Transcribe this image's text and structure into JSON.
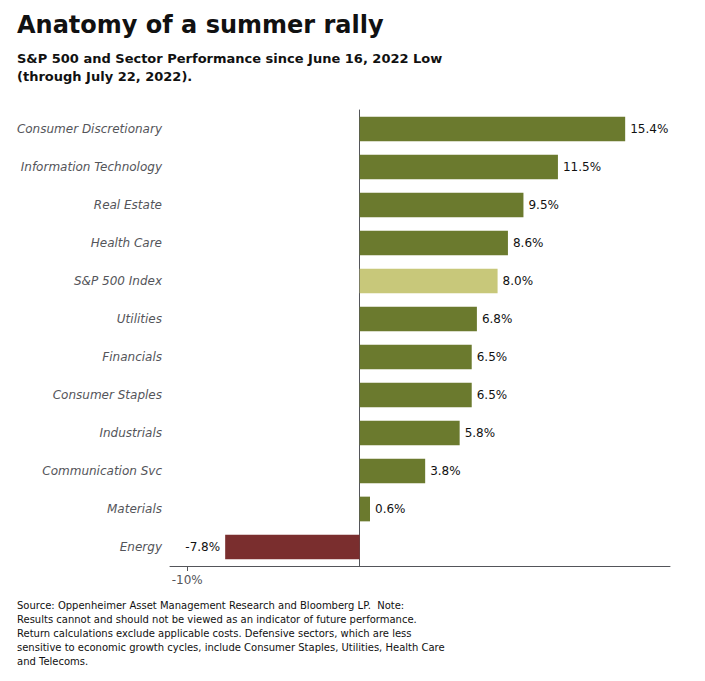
{
  "chart_data": {
    "type": "bar",
    "orientation": "horizontal",
    "title": "Anatomy of a summer rally",
    "subtitle": "S&P 500 and Sector Performance since June 16, 2022 Low\n(through July 22, 2022).",
    "annotations": [
      "Source: Oppenheimer Asset Management Research and Bloomberg LP.  Note:\nResults cannot and should not be viewed as an indicator of future performance.\nReturn calculations exclude applicable costs. Defensive sectors, which are less\nsensitive to economic growth cycles, include Consumer Staples, Utilities, Health Care\nand Telecoms."
    ],
    "categories": [
      "Consumer Discretionary",
      "Information Technology",
      "Real Estate",
      "Health Care",
      "S&P 500 Index",
      "Utilities",
      "Financials",
      "Consumer Staples",
      "Industrials",
      "Communication Svc",
      "Materials",
      "Energy"
    ],
    "values": [
      15.4,
      11.5,
      9.5,
      8.6,
      8.0,
      6.8,
      6.5,
      6.5,
      5.8,
      3.8,
      0.6,
      -7.8
    ],
    "value_labels": [
      "15.4%",
      "11.5%",
      "9.5%",
      "8.6%",
      "8.0%",
      "6.8%",
      "6.5%",
      "6.5%",
      "5.8%",
      "3.8%",
      "0.6%",
      "-7.8%"
    ],
    "data_labels": true,
    "colors": [
      "#6b7a2e",
      "#6b7a2e",
      "#6b7a2e",
      "#6b7a2e",
      "#c8c87a",
      "#6b7a2e",
      "#6b7a2e",
      "#6b7a2e",
      "#6b7a2e",
      "#6b7a2e",
      "#6b7a2e",
      "#7a2e2e"
    ],
    "xlim": [
      -11,
      18
    ],
    "xticks": [
      {
        "value": -10,
        "label": "-10%"
      }
    ],
    "grid": false
  }
}
